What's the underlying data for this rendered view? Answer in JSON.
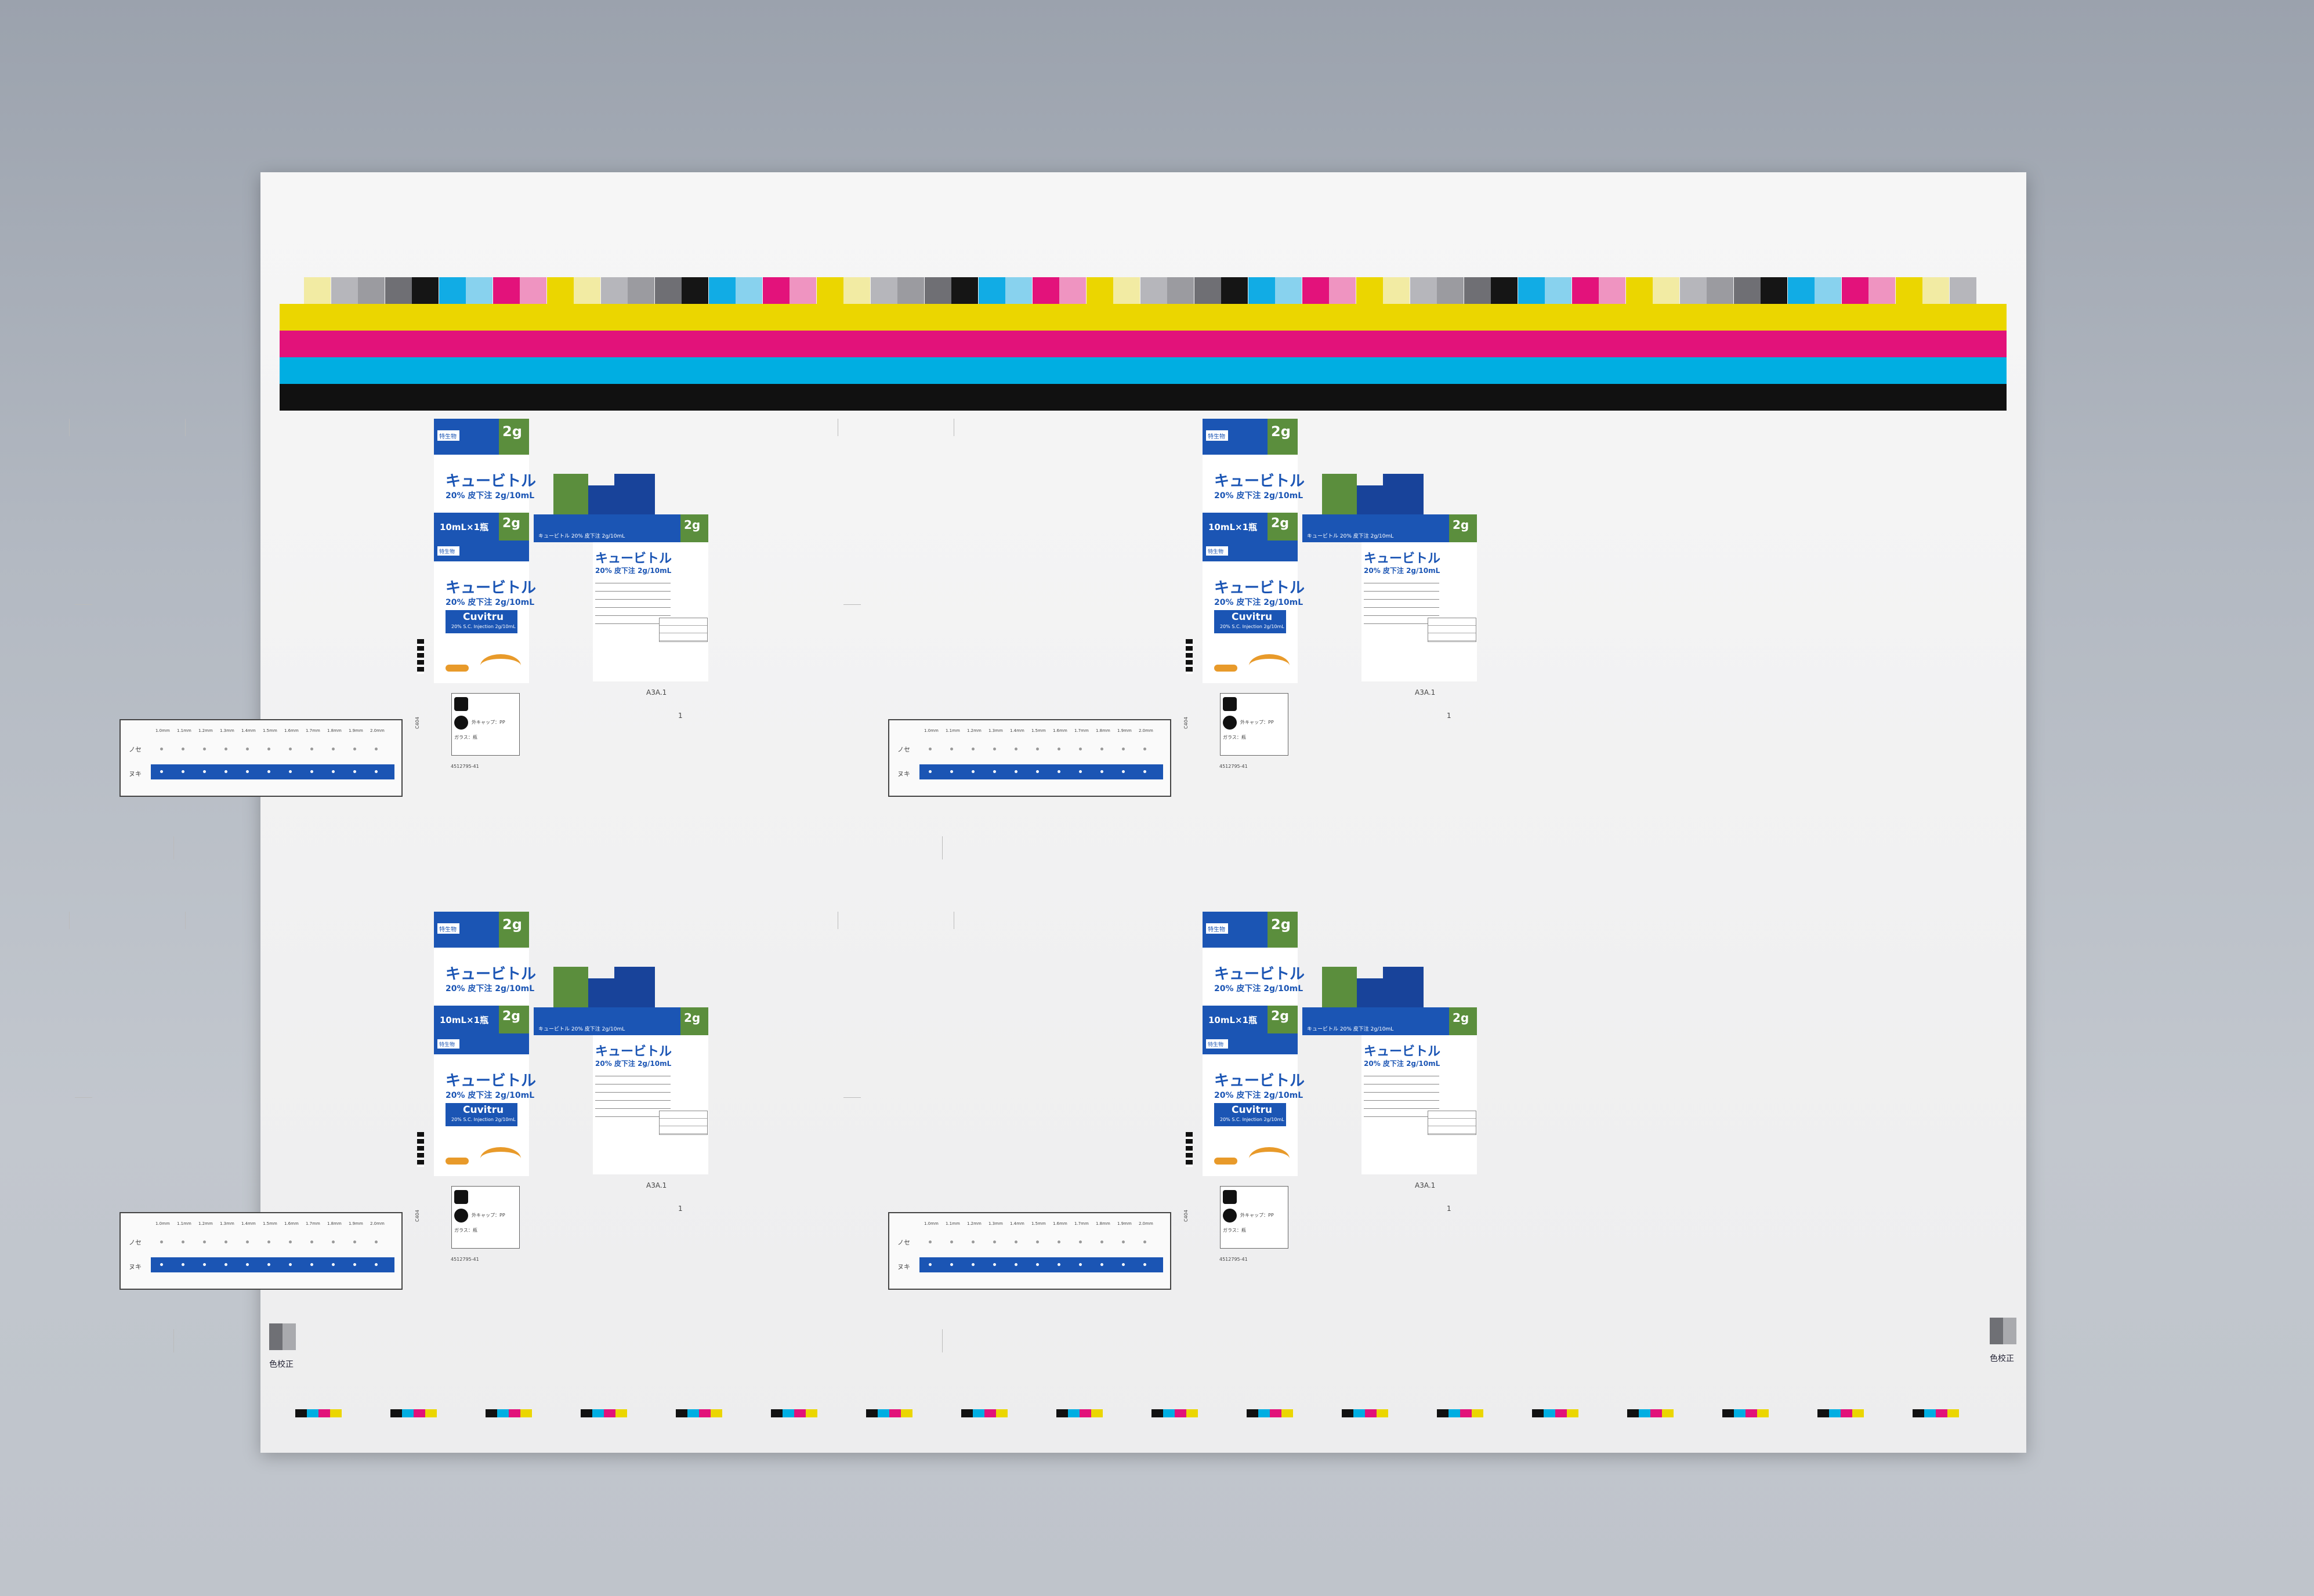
{
  "colors": {
    "yellow": "#ebd600",
    "magenta": "#e2127a",
    "cyan": "#00aee2",
    "black": "#111111",
    "blue": "#1b55b4",
    "green": "#5b8e3d",
    "orange": "#e89a2a"
  },
  "swatch_colors": [
    "#f2eba3",
    "#b6b6bb",
    "#9b9ba0",
    "#6f6f74",
    "#151515",
    "#11ace5",
    "#88d2ee",
    "#e3127b",
    "#ef94c1",
    "#ebd600"
  ],
  "panel": {
    "label_tokusei": "特生物",
    "product_name": "キュービトル",
    "dose_text": "20% 皮下注 2g/10mL",
    "size_2g": "2g",
    "vial_text": "10mL×1瓶",
    "brand": "Cuvitru",
    "brand_sub": "20% S.C. Injection 2g/10mL",
    "side_name": "キュービトル 20% 皮下注 2g/10mL",
    "code": "A3A.1",
    "page_no": "1",
    "c_code": "C404",
    "lot": "4512795-41",
    "cap_pp": "外キャップ：PP",
    "glass": "ガラス：瓶",
    "nose": "ノセ",
    "nuki": "ヌキ",
    "scale_labels": [
      "1.0mm",
      "1.1mm",
      "1.2mm",
      "1.3mm",
      "1.4mm",
      "1.5mm",
      "1.6mm",
      "1.7mm",
      "1.8mm",
      "1.9mm",
      "2.0mm"
    ]
  },
  "footer": {
    "color_proof_left": "色校正",
    "color_proof_right": "色校正"
  }
}
